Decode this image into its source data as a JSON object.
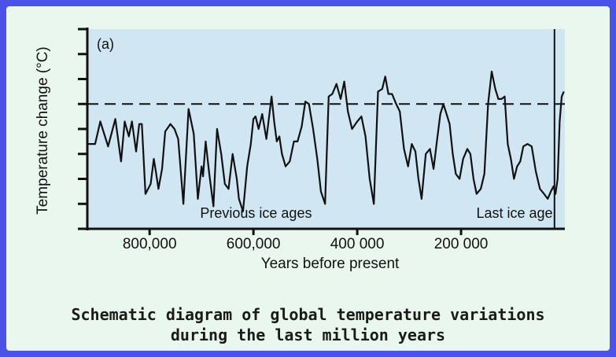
{
  "caption": {
    "line1": "Schematic diagram of global temperature variations",
    "line2": "during the last million years"
  },
  "colors": {
    "background": "#4a52e8",
    "panel": "#e9f7ee",
    "plot_area": "#d0e6f3",
    "line": "#111111"
  },
  "chart_data": {
    "type": "line",
    "panel_label": "(a)",
    "ylabel": "Temperature change (°C)",
    "xlabel": "Years before present",
    "x_ticks": [
      {
        "value": 800000,
        "label": "800,000"
      },
      {
        "value": 600000,
        "label": "600,000"
      },
      {
        "value": 400000,
        "label": "400 000"
      },
      {
        "value": 200000,
        "label": "200 000"
      }
    ],
    "xlim": [
      920000,
      0
    ],
    "ylim": [
      -5,
      3
    ],
    "y_tick_count": 9,
    "reference_line": {
      "style": "dashed",
      "y": 0
    },
    "last_ice_age_marker_x": 20000,
    "annotations": [
      {
        "text": "Previous ice ages",
        "x": 595000
      },
      {
        "text": "Last ice age",
        "x": 97000
      }
    ],
    "series": [
      {
        "x": [
          920000,
          905000,
          895000,
          880000,
          866000,
          855000,
          848000,
          840000,
          834000,
          826000,
          820000,
          815000,
          808000,
          798000,
          792000,
          788000,
          783000,
          776000,
          770000,
          760000,
          752000,
          745000,
          735000,
          725000,
          715000,
          707000,
          700000,
          697000,
          692000,
          685000,
          677000,
          670000,
          662000,
          655000,
          648000,
          640000,
          632000,
          628000,
          620000,
          612000,
          605000,
          600000,
          596000,
          590000,
          583000,
          575000,
          565000,
          560000,
          555000,
          550000,
          545000,
          538000,
          530000,
          522000,
          515000,
          507000,
          500000,
          493000,
          485000,
          477000,
          470000,
          462000,
          455000,
          448000,
          440000,
          432000,
          425000,
          418000,
          410000,
          400000,
          392000,
          384000,
          376000,
          368000,
          360000,
          352000,
          346000,
          340000,
          333000,
          325000,
          318000,
          310000,
          302000,
          295000,
          288000,
          282000,
          276000,
          268000,
          260000,
          253000,
          246000,
          240000,
          234000,
          228000,
          222000,
          216000,
          210000,
          203000,
          196000,
          188000,
          182000,
          176000,
          170000,
          162000,
          155000,
          148000,
          141000,
          134000,
          128000,
          122000,
          116000,
          110000,
          104000,
          98000,
          92000,
          86000,
          80000,
          72000,
          64000,
          56000,
          48000,
          40000,
          33000,
          27000,
          22000,
          18000,
          14000,
          10000,
          6000,
          2000
        ],
        "values": [
          -1.6,
          -1.6,
          -0.7,
          -1.7,
          -0.6,
          -2.3,
          -0.7,
          -1.3,
          -0.7,
          -1.9,
          -0.8,
          -0.8,
          -3.6,
          -3.2,
          -2.2,
          -2.7,
          -3.4,
          -2.6,
          -1.1,
          -0.8,
          -1.0,
          -1.4,
          -4.0,
          -0.2,
          -1.2,
          -3.8,
          -2.5,
          -2.9,
          -1.5,
          -2.8,
          -4.1,
          -1.0,
          -2.0,
          -3.2,
          -3.4,
          -2.0,
          -3.0,
          -3.8,
          -4.3,
          -2.5,
          -1.6,
          -0.6,
          -0.5,
          -1.0,
          -0.4,
          -1.4,
          0.3,
          -0.7,
          -1.5,
          -1.3,
          -2.0,
          -2.5,
          -2.3,
          -1.5,
          -1.5,
          -0.9,
          0.1,
          0.0,
          -1.0,
          -2.2,
          -3.5,
          -4.0,
          0.3,
          0.4,
          0.8,
          0.2,
          0.9,
          -0.3,
          -1.0,
          -0.7,
          -0.5,
          -1.3,
          -3.0,
          -4.0,
          0.5,
          0.6,
          1.1,
          0.4,
          0.4,
          0.0,
          -0.3,
          -1.8,
          -2.5,
          -1.6,
          -1.9,
          -3.0,
          -3.8,
          -2.0,
          -1.8,
          -2.6,
          -1.4,
          -0.4,
          0.0,
          -0.4,
          -0.8,
          -2.0,
          -2.8,
          -3.0,
          -2.2,
          -1.8,
          -2.0,
          -3.0,
          -3.6,
          -3.4,
          -2.8,
          0.0,
          1.3,
          0.6,
          0.2,
          0.2,
          0.3,
          -1.6,
          -2.2,
          -3.0,
          -2.5,
          -2.3,
          -1.7,
          -1.6,
          -1.7,
          -2.7,
          -3.4,
          -3.6,
          -3.8,
          -3.5,
          -3.3,
          -3.6,
          -3.0,
          -0.7,
          0.3,
          0.5
        ]
      }
    ]
  }
}
